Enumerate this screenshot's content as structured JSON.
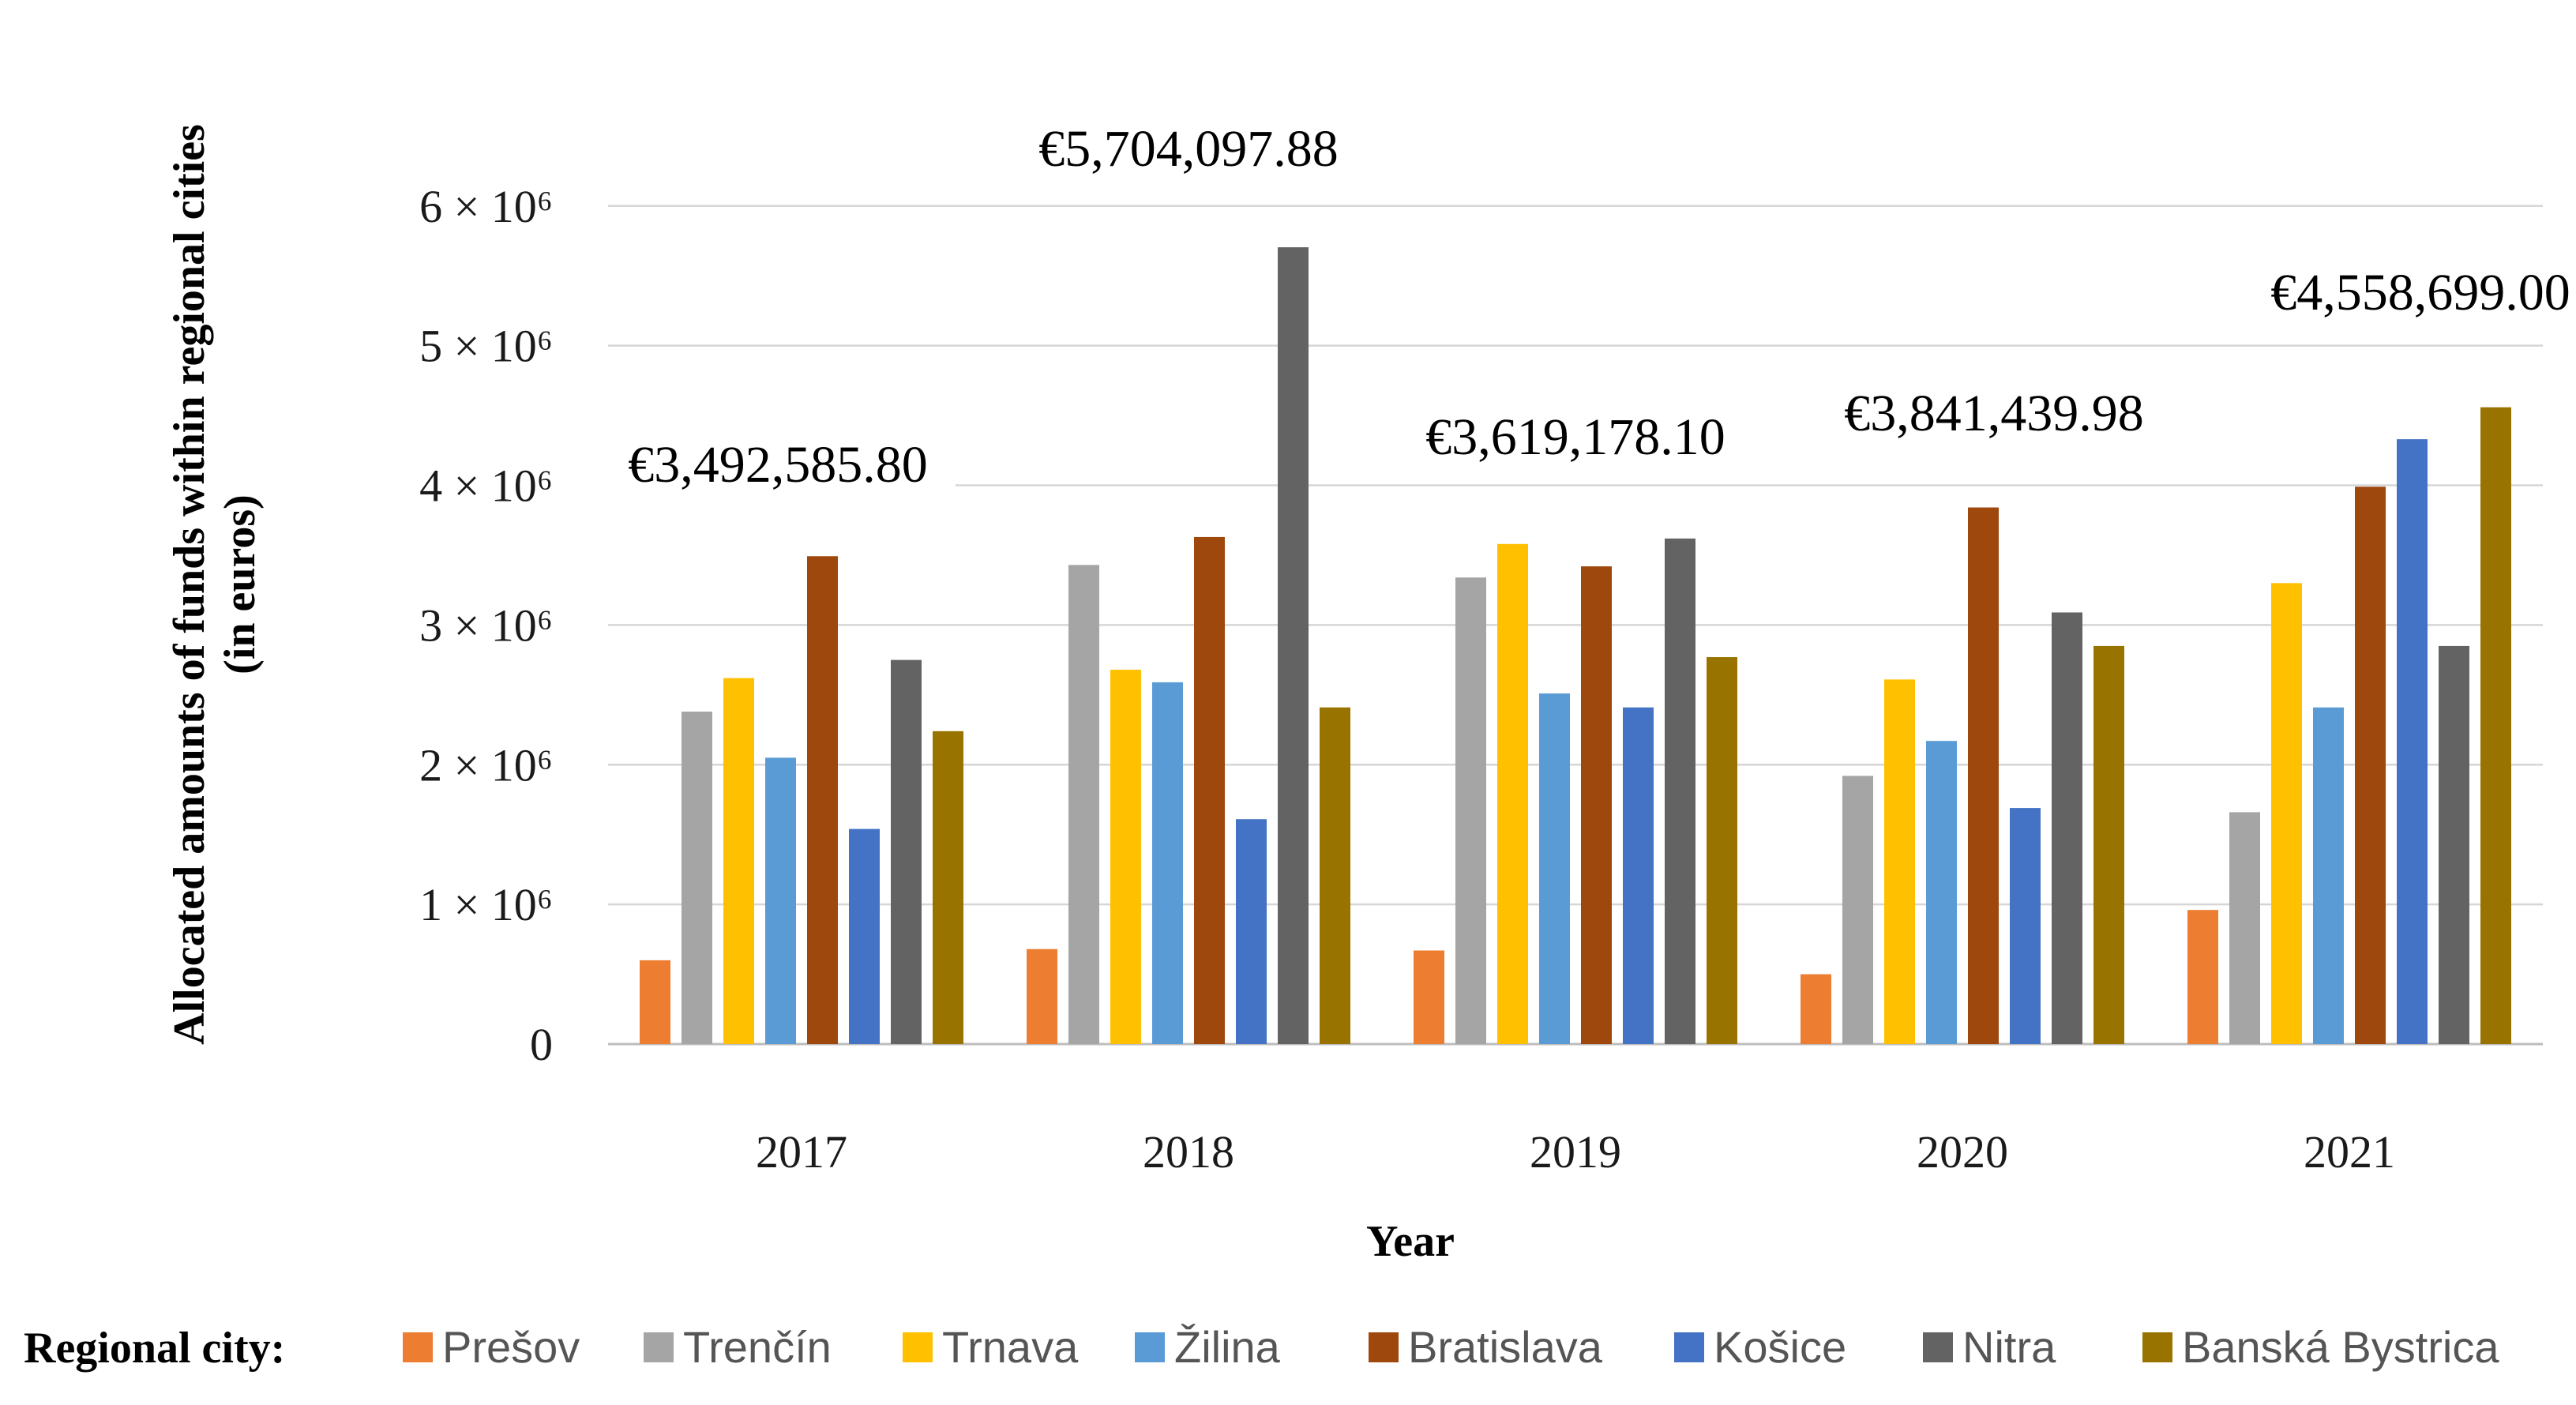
{
  "chart_data": {
    "type": "bar",
    "title": "",
    "xlabel": "Year",
    "ylabel_line1": "Allocated amounts of funds within regional cities",
    "ylabel_line2": "(in euros)",
    "ylim": [
      0,
      6400000
    ],
    "y_ticks": [
      {
        "value": 0,
        "label": "0"
      },
      {
        "value": 1000000,
        "label": "1 × 10⁶"
      },
      {
        "value": 2000000,
        "label": "2 × 10⁶"
      },
      {
        "value": 3000000,
        "label": "3 × 10⁶"
      },
      {
        "value": 4000000,
        "label": "4 × 10⁶"
      },
      {
        "value": 5000000,
        "label": "5 × 10⁶"
      },
      {
        "value": 6000000,
        "label": "6 × 10⁶"
      }
    ],
    "grid": true,
    "categories": [
      "2017",
      "2018",
      "2019",
      "2020",
      "2021"
    ],
    "legend_title": "Regional city:",
    "legend_position": "bottom",
    "series": [
      {
        "name": "Prešov",
        "color": "#ED7D31",
        "values": [
          600000,
          680000,
          670000,
          500000,
          960000
        ]
      },
      {
        "name": "Trenčín",
        "color": "#A5A5A5",
        "values": [
          2380000,
          3430000,
          3340000,
          1920000,
          1660000
        ]
      },
      {
        "name": "Trnava",
        "color": "#FFC000",
        "values": [
          2620000,
          2680000,
          3580000,
          2610000,
          3300000
        ]
      },
      {
        "name": "Žilina",
        "color": "#5B9BD5",
        "values": [
          2050000,
          2590000,
          2510000,
          2170000,
          2410000
        ]
      },
      {
        "name": "Bratislava",
        "color": "#9E480E",
        "values": [
          3492585.8,
          3630000,
          3420000,
          3841439.98,
          3990000
        ]
      },
      {
        "name": "Košice",
        "color": "#4472C4",
        "values": [
          1540000,
          1610000,
          2410000,
          1690000,
          4330000
        ]
      },
      {
        "name": "Nitra",
        "color": "#636363",
        "values": [
          2750000,
          5704097.88,
          3619178.1,
          3090000,
          2850000
        ]
      },
      {
        "name": "Banská Bystrica",
        "color": "#997300",
        "values": [
          2240000,
          2410000,
          2770000,
          2850000,
          4558699.0
        ]
      }
    ],
    "annotations": [
      {
        "text": "€3,492,585.80",
        "category": "2017"
      },
      {
        "text": "€5,704,097.88",
        "category": "2018"
      },
      {
        "text": "€3,619,178.10",
        "category": "2019"
      },
      {
        "text": "€3,841,439.98",
        "category": "2020"
      },
      {
        "text": "€4,558,699.00",
        "category": "2021"
      }
    ]
  }
}
